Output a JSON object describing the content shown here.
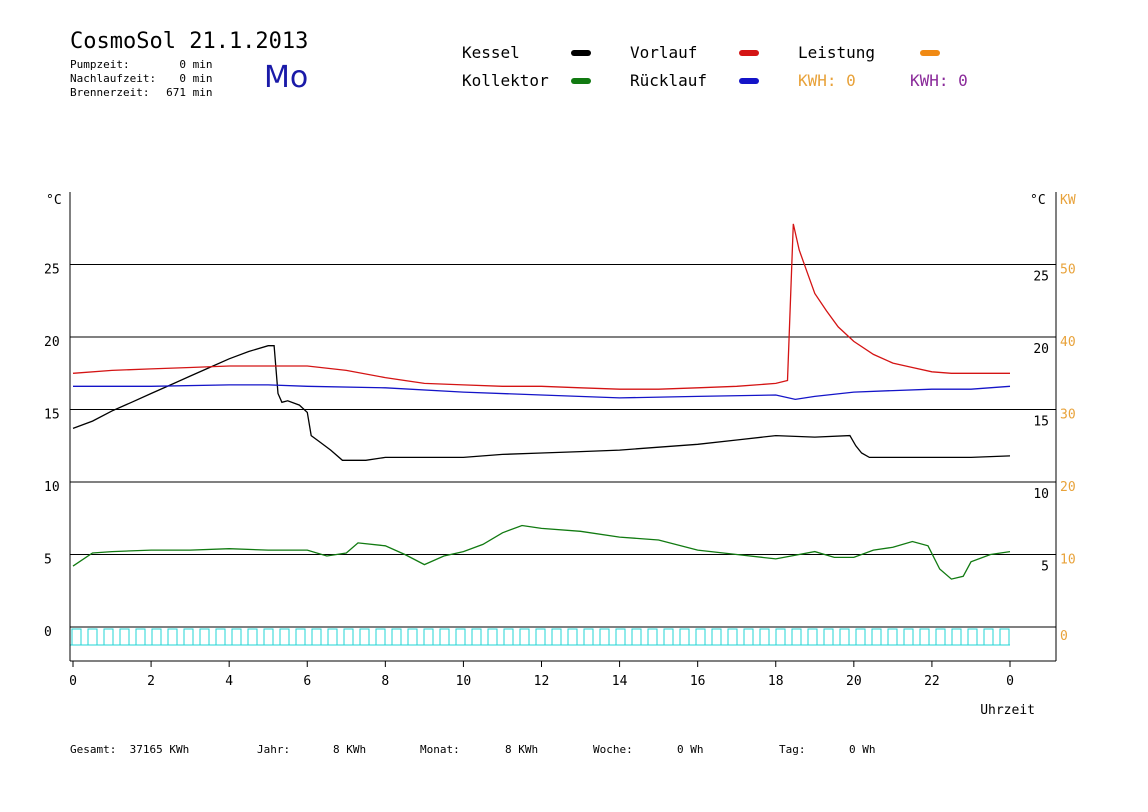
{
  "header": {
    "title": "CosmoSol 21.1.2013",
    "day": "Mo",
    "stats": [
      {
        "label": "Pumpzeit:",
        "value": "0",
        "unit": "min"
      },
      {
        "label": "Nachlaufzeit:",
        "value": "0",
        "unit": "min"
      },
      {
        "label": "Brennerzeit:",
        "value": "671",
        "unit": "min"
      }
    ]
  },
  "legend": {
    "kessel": "Kessel",
    "kollektor": "Kollektor",
    "vorlauf": "Vorlauf",
    "ruecklauf": "Rücklauf",
    "leistung": "Leistung",
    "kwh1": "KWH: 0",
    "kwh2": "KWH: 0"
  },
  "colors": {
    "kessel": "#000000",
    "kollektor": "#117a11",
    "vorlauf": "#d41414",
    "ruecklauf": "#1414c8",
    "leistung": "#f08a14",
    "kwh1": "#e8a23a",
    "kwh2": "#8a2a9a",
    "pump": "#22d4d4",
    "kw_axis": "#e8a23a"
  },
  "chart_data": {
    "type": "line",
    "xlabel": "Uhrzeit",
    "ylabel_left": "°C",
    "ylabel_right": "°C",
    "ylabel_kw": "KW",
    "xlim": [
      0,
      24
    ],
    "ylim": [
      0,
      30
    ],
    "kw_lim": [
      0,
      60
    ],
    "x_ticks": [
      "0",
      "2",
      "4",
      "6",
      "8",
      "10",
      "12",
      "14",
      "16",
      "18",
      "20",
      "22",
      "0"
    ],
    "y_ticks_left": [
      "0",
      "5",
      "10",
      "15",
      "20",
      "25"
    ],
    "y_ticks_right": [
      "5",
      "10",
      "15",
      "20",
      "25"
    ],
    "kw_ticks": [
      "0",
      "10",
      "20",
      "30",
      "40",
      "50"
    ],
    "gridlines": [
      5,
      10,
      15,
      20,
      25
    ],
    "series": [
      {
        "name": "Kessel",
        "color_key": "kessel",
        "x": [
          0,
          0.5,
          1,
          1.5,
          2,
          2.5,
          3,
          3.5,
          4,
          4.5,
          5,
          5.15,
          5.25,
          5.35,
          5.5,
          5.8,
          6.0,
          6.1,
          6.3,
          6.6,
          6.9,
          7.5,
          8.0,
          9,
          10,
          11,
          12,
          13,
          14,
          15,
          16,
          17,
          18,
          19,
          19.9,
          20.05,
          20.2,
          20.4,
          21,
          22,
          23,
          24
        ],
        "y": [
          13.7,
          14.2,
          14.9,
          15.5,
          16.1,
          16.7,
          17.3,
          17.9,
          18.5,
          19.0,
          19.4,
          19.4,
          16.1,
          15.5,
          15.6,
          15.3,
          14.8,
          13.2,
          12.8,
          12.2,
          11.5,
          11.5,
          11.7,
          11.7,
          11.7,
          11.9,
          12.0,
          12.1,
          12.2,
          12.4,
          12.6,
          12.9,
          13.2,
          13.1,
          13.2,
          12.5,
          12.0,
          11.7,
          11.7,
          11.7,
          11.7,
          11.8
        ]
      },
      {
        "name": "Vorlauf",
        "color_key": "vorlauf",
        "x": [
          0,
          1,
          2,
          3,
          4,
          5,
          6,
          7,
          8,
          9,
          10,
          11,
          12,
          13,
          14,
          15,
          16,
          17,
          18,
          18.3,
          18.45,
          18.6,
          18.8,
          19.0,
          19.3,
          19.6,
          20.0,
          20.5,
          21,
          21.5,
          22,
          22.5,
          23,
          24
        ],
        "y": [
          17.5,
          17.7,
          17.8,
          17.9,
          18.0,
          18.0,
          18.0,
          17.7,
          17.2,
          16.8,
          16.7,
          16.6,
          16.6,
          16.5,
          16.4,
          16.4,
          16.5,
          16.6,
          16.8,
          17.0,
          27.8,
          26.0,
          24.5,
          23.0,
          21.8,
          20.7,
          19.7,
          18.8,
          18.2,
          17.9,
          17.6,
          17.5,
          17.5,
          17.5
        ]
      },
      {
        "name": "Rücklauf",
        "color_key": "ruecklauf",
        "x": [
          0,
          2,
          4,
          5,
          6,
          8,
          10,
          12,
          14,
          16,
          18,
          18.5,
          19,
          20,
          21,
          22,
          23,
          24
        ],
        "y": [
          16.6,
          16.6,
          16.7,
          16.7,
          16.6,
          16.5,
          16.2,
          16.0,
          15.8,
          15.9,
          16.0,
          15.7,
          15.9,
          16.2,
          16.3,
          16.4,
          16.4,
          16.6
        ]
      },
      {
        "name": "Kollektor",
        "color_key": "kollektor",
        "x": [
          0,
          0.5,
          1,
          2,
          3,
          4,
          5,
          6,
          6.5,
          7,
          7.3,
          8,
          8.5,
          9,
          9.5,
          10,
          10.5,
          11,
          11.5,
          12,
          13,
          14,
          15,
          16,
          17,
          18,
          19,
          19.5,
          20,
          20.5,
          21,
          21.5,
          21.9,
          22.2,
          22.5,
          22.8,
          23,
          23.5,
          24
        ],
        "y": [
          4.2,
          5.1,
          5.2,
          5.3,
          5.3,
          5.4,
          5.3,
          5.3,
          4.9,
          5.1,
          5.8,
          5.6,
          5.0,
          4.3,
          4.9,
          5.2,
          5.7,
          6.5,
          7.0,
          6.8,
          6.6,
          6.2,
          6.0,
          5.3,
          5.0,
          4.7,
          5.2,
          4.8,
          4.8,
          5.3,
          5.5,
          5.9,
          5.6,
          4.0,
          3.3,
          3.5,
          4.5,
          5.0,
          5.2
        ]
      }
    ]
  },
  "footer": {
    "gesamt_label": "Gesamt:",
    "gesamt_value": "37165 KWh",
    "jahr_label": "Jahr:",
    "jahr_value": "8 KWh",
    "monat_label": "Monat:",
    "monat_value": "8 KWh",
    "woche_label": "Woche:",
    "woche_value": "0 Wh",
    "tag_label": "Tag:",
    "tag_value": "0 Wh"
  }
}
